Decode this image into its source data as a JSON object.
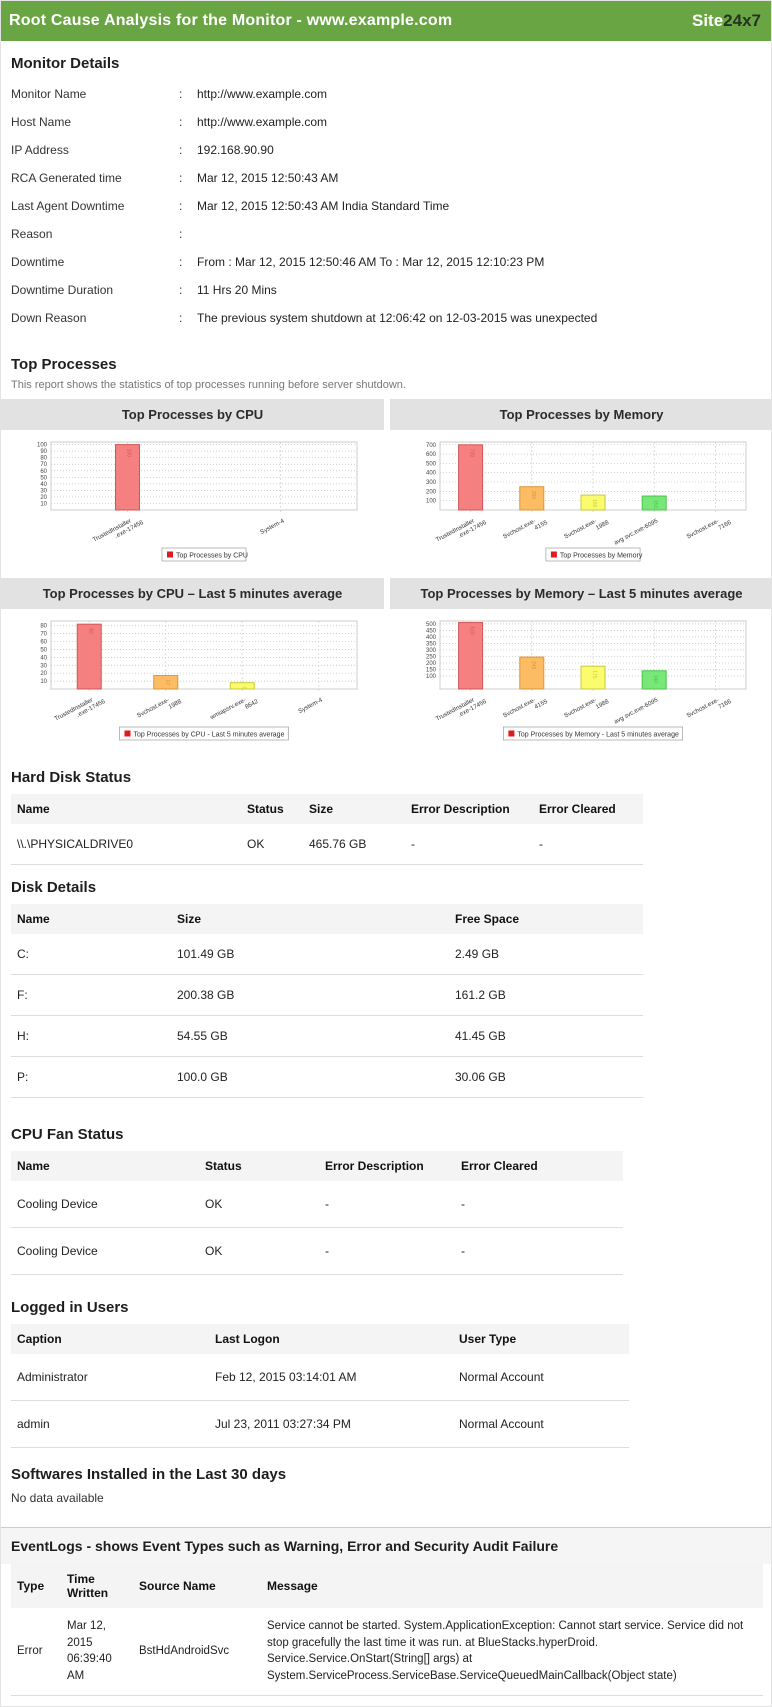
{
  "header": {
    "title": "Root Cause Analysis for the Monitor - www.example.com",
    "logo_site": "Site",
    "logo_24x7": "24x7",
    "accent_green": "#6aa544"
  },
  "monitor_details": {
    "title": "Monitor Details",
    "rows": [
      {
        "label": "Monitor Name",
        "value": "http://www.example.com"
      },
      {
        "label": "Host Name",
        "value": "http://www.example.com"
      },
      {
        "label": "IP Address",
        "value": "192.168.90.90"
      },
      {
        "label": "RCA Generated time",
        "value": "Mar 12, 2015 12:50:43 AM"
      },
      {
        "label": "Last Agent Downtime",
        "value": "Mar 12, 2015 12:50:43 AM India Standard Time"
      },
      {
        "label": "Reason",
        "value": ""
      },
      {
        "label": "Downtime",
        "value": "From : Mar 12, 2015 12:50:46 AM To : Mar 12, 2015 12:10:23 PM"
      },
      {
        "label": "Downtime Duration",
        "value": "11 Hrs 20 Mins"
      },
      {
        "label": "Down Reason",
        "value": "The previous system shutdown at 12:06:42 on 12-03-2015 was unexpected"
      }
    ]
  },
  "top_processes": {
    "title": "Top Processes",
    "note": "This report shows the statistics of top processes running before server shutdown."
  },
  "chart_data": [
    {
      "type": "bar",
      "title": "Top Processes by CPU",
      "legend": "Top Processes by CPU",
      "categories": [
        [
          "TrustedInstaller",
          ".exe-17456"
        ],
        [
          "System-4"
        ]
      ],
      "values": [
        100,
        0
      ],
      "bar_colors": [
        "#f58080",
        null
      ],
      "ticks": [
        10,
        20,
        30,
        40,
        50,
        60,
        70,
        80,
        90,
        100
      ],
      "ylabel": "",
      "xlabel": "",
      "ylim": [
        0,
        104
      ],
      "grid": true,
      "legend_position": "bottom"
    },
    {
      "type": "bar",
      "title": "Top Processes by Memory",
      "legend": "Top Processes by Memory",
      "categories": [
        [
          "TrustedInstaller",
          ".exe-17456"
        ],
        [
          "Svchost.exe-",
          "4155"
        ],
        [
          "Svchost.exe-",
          "1988"
        ],
        [
          "avg svc.exe-6095"
        ],
        [
          "Svchost.exe-",
          "7166"
        ]
      ],
      "values": [
        700,
        250,
        160,
        150,
        0
      ],
      "bar_colors": [
        "#f58080",
        "#fbbc63",
        "#fbfb6e",
        "#77e877",
        null
      ],
      "ticks": [
        100,
        200,
        300,
        400,
        500,
        600,
        700
      ],
      "ylabel": "",
      "xlabel": "",
      "ylim": [
        0,
        730
      ],
      "grid": true,
      "legend_position": "bottom"
    },
    {
      "type": "bar",
      "title": "Top Processes by CPU – Last 5 minutes average",
      "legend": "Top Processes by CPU - Last 5 minutes average",
      "categories": [
        [
          "TrustedInstaller",
          ".exe-17456"
        ],
        [
          "Svchost.exe-",
          "1988"
        ],
        [
          "wmiapsrv.exe-",
          "8642"
        ],
        [
          "System-4"
        ]
      ],
      "values": [
        82,
        17,
        8,
        0
      ],
      "bar_colors": [
        "#f58080",
        "#fbbc63",
        "#fbfb6e",
        null
      ],
      "ticks": [
        10,
        20,
        30,
        40,
        50,
        60,
        70,
        80
      ],
      "ylabel": "",
      "xlabel": "",
      "ylim": [
        0,
        86
      ],
      "grid": true,
      "legend_position": "bottom"
    },
    {
      "type": "bar",
      "title": "Top Processes by Memory – Last 5 minutes average",
      "legend": "Top Processes by Memory - Last 5 minutes average",
      "categories": [
        [
          "TrustedInstaller",
          ".exe-17456"
        ],
        [
          "Svchost.exe-",
          "4155"
        ],
        [
          "Svchost.exe-",
          "1988"
        ],
        [
          "avg svc.exe-6095"
        ],
        [
          "Svchost.exe-",
          "7166"
        ]
      ],
      "values": [
        510,
        245,
        175,
        140,
        0
      ],
      "bar_colors": [
        "#f58080",
        "#fbbc63",
        "#fbfb6e",
        "#77e877",
        null
      ],
      "ticks": [
        100,
        150,
        200,
        250,
        300,
        350,
        400,
        450,
        500
      ],
      "ylabel": "",
      "xlabel": "",
      "ylim": [
        0,
        522
      ],
      "grid": true,
      "legend_position": "bottom"
    }
  ],
  "hard_disk": {
    "title": "Hard Disk Status",
    "headers": [
      "Name",
      "Status",
      "Size",
      "Error Description",
      "Error Cleared"
    ],
    "rows": [
      [
        "\\\\.\\PHYSICALDRIVE0",
        "OK",
        "465.76 GB",
        "-",
        "-"
      ]
    ]
  },
  "disk_details": {
    "title": "Disk Details",
    "headers": [
      "Name",
      "Size",
      "Free Space"
    ],
    "rows": [
      [
        "C:",
        "101.49 GB",
        "2.49 GB"
      ],
      [
        "F:",
        "200.38 GB",
        "161.2 GB"
      ],
      [
        "H:",
        "54.55 GB",
        "41.45 GB"
      ],
      [
        "P:",
        "100.0 GB",
        "30.06 GB"
      ]
    ]
  },
  "cpu_fan": {
    "title": "CPU Fan Status",
    "headers": [
      "Name",
      "Status",
      "Error Description",
      "Error Cleared"
    ],
    "rows": [
      [
        "Cooling Device",
        "OK",
        "-",
        "-"
      ],
      [
        "Cooling Device",
        "OK",
        "-",
        "-"
      ]
    ]
  },
  "logged_users": {
    "title": "Logged in Users",
    "headers": [
      "Caption",
      "Last Logon",
      "User Type"
    ],
    "rows": [
      [
        "Administrator",
        "Feb 12, 2015 03:14:01 AM",
        "Normal Account"
      ],
      [
        "admin",
        "Jul 23, 2011 03:27:34 PM",
        "Normal Account"
      ]
    ]
  },
  "softwares": {
    "title": "Softwares Installed in the Last 30 days",
    "empty": "No data available"
  },
  "eventlogs": {
    "title": "EventLogs - shows Event Types such as Warning, Error and Security Audit Failure",
    "headers": [
      "Type",
      "Time Written",
      "Source Name",
      "Message"
    ],
    "rows": [
      [
        "Error",
        "Mar 12, 2015 06:39:40 AM",
        "BstHdAndroidSvc",
        "Service cannot be started. System.ApplicationException: Cannot start service. Service did not stop gracefully the last time it was run. at BlueStacks.hyperDroid. Service.Service.OnStart(String[] args) at System.ServiceProcess.ServiceBase.ServiceQueuedMainCallback(Object state)"
      ]
    ]
  }
}
